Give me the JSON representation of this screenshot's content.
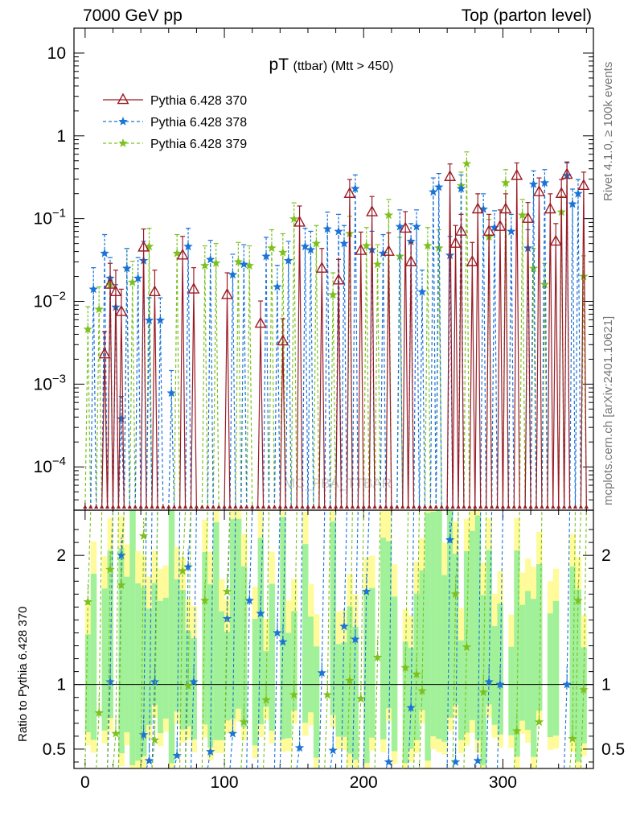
{
  "header": {
    "left": "7000 GeV pp",
    "right": "Top (parton level)"
  },
  "side_labels": {
    "rivet": "Rivet 4.1.0, ≥ 100k events",
    "mcplots": "mcplots.cern.ch [arXiv:2401.10621]"
  },
  "chart_data": {
    "type": "line",
    "title_main": "pT",
    "title_sub": "(ttbar) (Mtt > 450)",
    "watermark": "MC_FBA_TTBAR",
    "xlabel": "",
    "ylabel": "",
    "ratio_ylabel": "Ratio to Pythia 6.428 370",
    "xlim": [
      -8,
      365
    ],
    "ylim_log": [
      3e-05,
      20
    ],
    "ratio_ylim": [
      0.35,
      2.35
    ],
    "x_ticks": [
      "0",
      "100",
      "200",
      "300"
    ],
    "y_ticks": [
      "10^{-4}",
      "10^{-3}",
      "10^{-2}",
      "10^{-1}",
      "1",
      "10"
    ],
    "ratio_ticks": [
      "0.5",
      "1",
      "2"
    ],
    "legend_position": "top-left",
    "series": [
      {
        "name": "Pythia 6.428 370",
        "color": "#9a1b24",
        "marker": "triangle-open",
        "style": "solid",
        "points": [
          [
            14,
            0.0023
          ],
          [
            18,
            0.016
          ],
          [
            22,
            0.013
          ],
          [
            26,
            0.0075
          ],
          [
            42,
            0.045
          ],
          [
            50,
            0.013
          ],
          [
            70,
            0.036
          ],
          [
            78,
            0.014
          ],
          [
            102,
            0.012
          ],
          [
            126,
            0.0054
          ],
          [
            142,
            0.0033
          ],
          [
            154,
            0.09
          ],
          [
            170,
            0.025
          ],
          [
            182,
            0.018
          ],
          [
            190,
            0.2
          ],
          [
            198,
            0.041
          ],
          [
            206,
            0.12
          ],
          [
            218,
            0.04
          ],
          [
            230,
            0.076
          ],
          [
            234,
            0.03
          ],
          [
            262,
            0.32
          ],
          [
            266,
            0.05
          ],
          [
            270,
            0.07
          ],
          [
            278,
            0.03
          ],
          [
            282,
            0.13
          ],
          [
            290,
            0.07
          ],
          [
            298,
            0.08
          ],
          [
            302,
            0.13
          ],
          [
            310,
            0.33
          ],
          [
            318,
            0.1
          ],
          [
            326,
            0.21
          ],
          [
            334,
            0.13
          ],
          [
            338,
            0.053
          ],
          [
            342,
            0.2
          ],
          [
            346,
            0.34
          ],
          [
            358,
            0.25
          ]
        ]
      },
      {
        "name": "Pythia 6.428 378",
        "color": "#1a73d6",
        "marker": "star",
        "style": "dashed",
        "points": [
          [
            6,
            0.014
          ],
          [
            14,
            0.038
          ],
          [
            18,
            0.019
          ],
          [
            22,
            0.0085
          ],
          [
            26,
            0.00038
          ],
          [
            30,
            0.025
          ],
          [
            38,
            0.019
          ],
          [
            42,
            0.031
          ],
          [
            46,
            0.0059
          ],
          [
            54,
            0.0059
          ],
          [
            62,
            0.00078
          ],
          [
            74,
            0.046
          ],
          [
            90,
            0.032
          ],
          [
            106,
            0.021
          ],
          [
            114,
            0.028
          ],
          [
            130,
            0.035
          ],
          [
            138,
            0.015
          ],
          [
            146,
            0.031
          ],
          [
            158,
            0.046
          ],
          [
            162,
            0.042
          ],
          [
            174,
            0.075
          ],
          [
            182,
            0.07
          ],
          [
            186,
            0.05
          ],
          [
            194,
            0.23
          ],
          [
            206,
            0.042
          ],
          [
            214,
            0.038
          ],
          [
            226,
            0.08
          ],
          [
            234,
            0.053
          ],
          [
            238,
            0.08
          ],
          [
            242,
            0.013
          ],
          [
            250,
            0.21
          ],
          [
            254,
            0.24
          ],
          [
            262,
            0.036
          ],
          [
            270,
            0.23
          ],
          [
            286,
            0.13
          ],
          [
            294,
            0.078
          ],
          [
            306,
            0.07
          ],
          [
            318,
            0.044
          ],
          [
            322,
            0.26
          ],
          [
            330,
            0.27
          ],
          [
            346,
            0.33
          ],
          [
            350,
            0.15
          ],
          [
            354,
            0.2
          ]
        ]
      },
      {
        "name": "Pythia 6.428 379",
        "color": "#7cc11f",
        "marker": "star",
        "style": "dashed",
        "points": [
          [
            2,
            0.0046
          ],
          [
            10,
            0.008
          ],
          [
            18,
            0.016
          ],
          [
            30,
            0.025
          ],
          [
            34,
            0.017
          ],
          [
            46,
            0.046
          ],
          [
            66,
            0.038
          ],
          [
            86,
            0.027
          ],
          [
            94,
            0.029
          ],
          [
            110,
            0.03
          ],
          [
            118,
            0.027
          ],
          [
            134,
            0.044
          ],
          [
            142,
            0.039
          ],
          [
            150,
            0.099
          ],
          [
            166,
            0.05
          ],
          [
            178,
            0.012
          ],
          [
            190,
            0.066
          ],
          [
            202,
            0.047
          ],
          [
            210,
            0.028
          ],
          [
            218,
            0.11
          ],
          [
            226,
            0.035
          ],
          [
            246,
            0.047
          ],
          [
            254,
            0.044
          ],
          [
            270,
            0.25
          ],
          [
            274,
            0.46
          ],
          [
            290,
            0.06
          ],
          [
            302,
            0.27
          ],
          [
            314,
            0.11
          ],
          [
            322,
            0.025
          ],
          [
            330,
            0.016
          ],
          [
            342,
            0.12
          ],
          [
            358,
            0.02
          ]
        ]
      }
    ],
    "ratio_series": [
      {
        "name": "Pythia 6.428 378",
        "points": [
          [
            18,
            1.02
          ],
          [
            26,
            2.0
          ],
          [
            42,
            0.61
          ],
          [
            46,
            0.41
          ],
          [
            50,
            1.02
          ],
          [
            66,
            0.45
          ],
          [
            74,
            1.91
          ],
          [
            78,
            1.02
          ],
          [
            90,
            0.48
          ],
          [
            102,
            1.51
          ],
          [
            106,
            0.62
          ],
          [
            118,
            1.65
          ],
          [
            126,
            1.55
          ],
          [
            138,
            1.4
          ],
          [
            142,
            1.33
          ],
          [
            154,
            0.51
          ],
          [
            170,
            1.09
          ],
          [
            178,
            0.49
          ],
          [
            186,
            1.45
          ],
          [
            194,
            1.35
          ],
          [
            202,
            1.72
          ],
          [
            218,
            0.4
          ],
          [
            234,
            0.82
          ],
          [
            262,
            2.12
          ],
          [
            266,
            0.4
          ],
          [
            282,
            0.41
          ],
          [
            290,
            1.02
          ],
          [
            298,
            1.0
          ],
          [
            346,
            1.0
          ]
        ]
      },
      {
        "name": "Pythia 6.428 379",
        "points": [
          [
            2,
            1.64
          ],
          [
            10,
            0.78
          ],
          [
            18,
            1.89
          ],
          [
            22,
            0.62
          ],
          [
            26,
            1.77
          ],
          [
            42,
            2.15
          ],
          [
            50,
            0.57
          ],
          [
            70,
            1.88
          ],
          [
            74,
            0.99
          ],
          [
            86,
            1.65
          ],
          [
            102,
            1.72
          ],
          [
            114,
            0.71
          ],
          [
            130,
            0.88
          ],
          [
            150,
            0.92
          ],
          [
            174,
            0.92
          ],
          [
            190,
            1.03
          ],
          [
            198,
            0.89
          ],
          [
            210,
            1.21
          ],
          [
            230,
            1.13
          ],
          [
            238,
            1.08
          ],
          [
            242,
            0.95
          ],
          [
            266,
            1.7
          ],
          [
            274,
            1.29
          ],
          [
            286,
            0.94
          ],
          [
            310,
            0.64
          ],
          [
            326,
            0.71
          ],
          [
            350,
            0.58
          ],
          [
            354,
            1.65
          ],
          [
            358,
            0.96
          ]
        ]
      }
    ]
  }
}
